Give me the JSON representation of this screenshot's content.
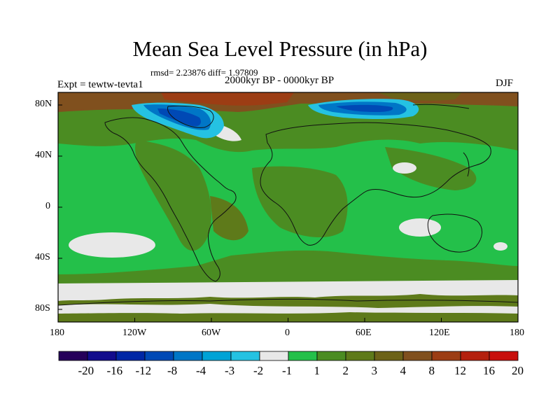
{
  "title": "Mean Sea Level Pressure (in hPa)",
  "stats": "rmsd= 2.23876 diff= 1.97809",
  "period": "2000kyr BP - 0000kyr BP",
  "experiment": "Expt = tewtw-tevta1",
  "season": "DJF",
  "lat_ticks": [
    "80N",
    "40N",
    "0",
    "40S",
    "80S"
  ],
  "lon_ticks": [
    "180",
    "120W",
    "60W",
    "0",
    "60E",
    "120E",
    "180"
  ],
  "colorbar": {
    "colors": [
      "#26005a",
      "#120c8c",
      "#0027a5",
      "#0049b5",
      "#0076c6",
      "#00a3d6",
      "#25c2e2",
      "#e8e8e8",
      "#24c04a",
      "#4b8c22",
      "#5e7a1a",
      "#6c6218",
      "#80501e",
      "#9c3d14",
      "#b4200e",
      "#c80f0c"
    ],
    "labels": [
      "-20",
      "-16",
      "-12",
      "-8",
      "-4",
      "-3",
      "-2",
      "-1",
      "1",
      "2",
      "3",
      "4",
      "8",
      "12",
      "16",
      "20"
    ]
  }
}
